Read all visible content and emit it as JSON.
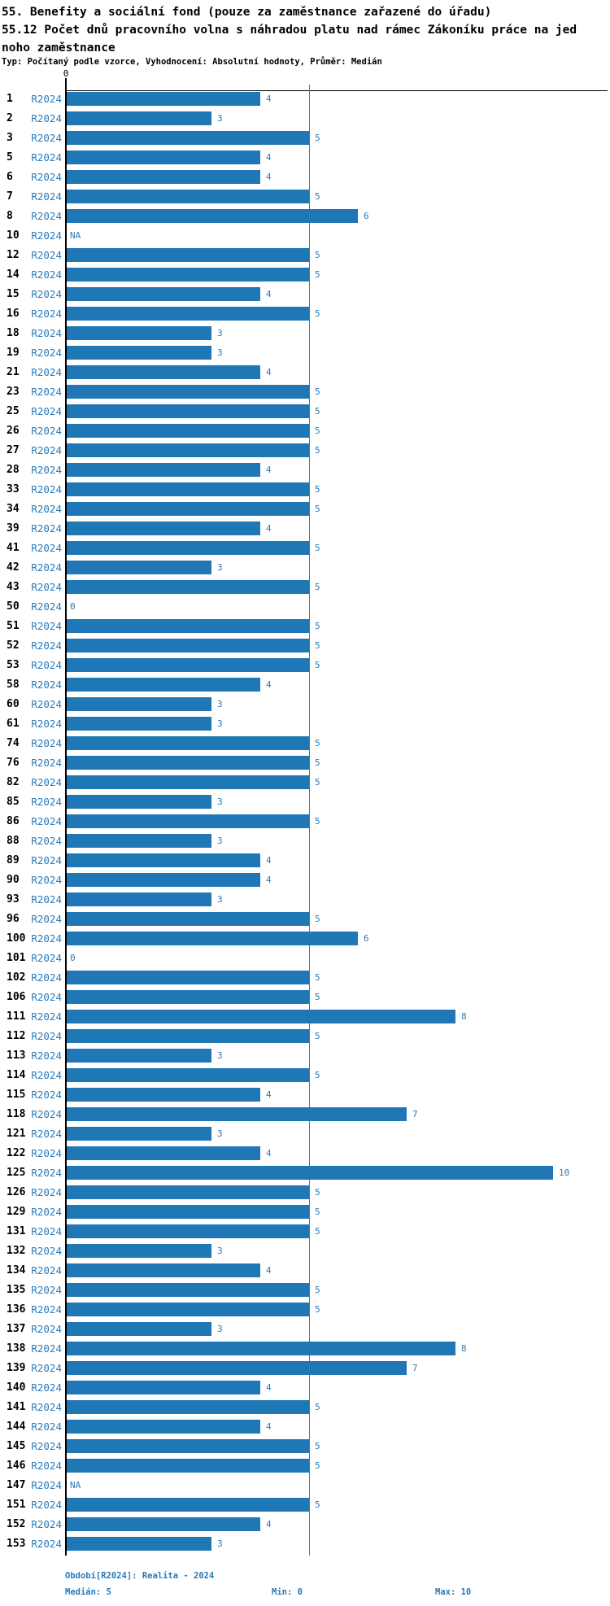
{
  "chart_data": {
    "type": "bar",
    "orientation": "horizontal",
    "title": "55. Benefity a sociální fond (pouze za zaměstnance zařazené do úřadu)",
    "subtitle": "55.12 Počet dnů pracovního volna s náhradou platu nad rámec Zákoníku práce na jednoho zaměstnance",
    "meta": "Typ: Počítaný podle vzorce, Vyhodnocení: Absolutní hodnoty, Průměr: Medián",
    "series_label": "R2024",
    "categories": [
      "1",
      "2",
      "3",
      "5",
      "6",
      "7",
      "8",
      "10",
      "12",
      "14",
      "15",
      "16",
      "18",
      "19",
      "21",
      "23",
      "25",
      "26",
      "27",
      "28",
      "33",
      "34",
      "39",
      "41",
      "42",
      "43",
      "50",
      "51",
      "52",
      "53",
      "58",
      "60",
      "61",
      "74",
      "76",
      "82",
      "85",
      "86",
      "88",
      "89",
      "90",
      "93",
      "96",
      "100",
      "101",
      "102",
      "106",
      "111",
      "112",
      "113",
      "114",
      "115",
      "118",
      "121",
      "122",
      "125",
      "126",
      "129",
      "131",
      "132",
      "134",
      "135",
      "136",
      "137",
      "138",
      "139",
      "140",
      "141",
      "144",
      "145",
      "146",
      "147",
      "151",
      "152",
      "153"
    ],
    "values": [
      4,
      3,
      5,
      4,
      4,
      5,
      6,
      "NA",
      5,
      5,
      4,
      5,
      3,
      3,
      4,
      5,
      5,
      5,
      5,
      4,
      5,
      5,
      4,
      5,
      3,
      5,
      0,
      5,
      5,
      5,
      4,
      3,
      3,
      5,
      5,
      5,
      3,
      5,
      3,
      4,
      4,
      3,
      5,
      6,
      0,
      5,
      5,
      8,
      5,
      3,
      5,
      4,
      7,
      3,
      4,
      10,
      5,
      5,
      5,
      3,
      4,
      5,
      5,
      3,
      8,
      7,
      4,
      5,
      4,
      5,
      5,
      "NA",
      5,
      4,
      3
    ],
    "xlim": [
      0,
      10
    ],
    "x_axis_tick_label": "0",
    "reference_line_value": 5,
    "grid": false,
    "bar_color": "#2077b5",
    "label_color": "#2b7ab8",
    "reference_line_color": "#2e80bb"
  },
  "footer": {
    "period": "Období[R2024]: Realita - 2024",
    "median": "Medián: 5",
    "min": "Min: 0",
    "max": "Max: 10"
  }
}
